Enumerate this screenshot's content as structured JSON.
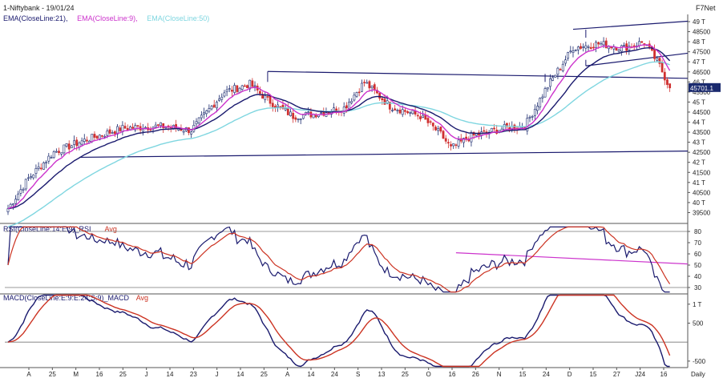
{
  "header": {
    "title": "1-Niftybank - 19/01/24",
    "brand": "F7Net",
    "ema_legend": [
      {
        "label": "EMA(CloseLine:21),",
        "color": "#1a1a6e"
      },
      {
        "label": "EMA(CloseLine:9),",
        "color": "#cc33cc"
      },
      {
        "label": "EMA(CloseLine:50)",
        "color": "#7fd6e0"
      }
    ]
  },
  "price_panel": {
    "ticks": [
      "49 T",
      "48500",
      "48 T",
      "47500",
      "47 T",
      "46500",
      "46 T",
      "45500",
      "45 T",
      "44500",
      "44 T",
      "43500",
      "43 T",
      "42500",
      "42 T",
      "41500",
      "41 T",
      "40500",
      "40 T",
      "39500"
    ],
    "tick_values": [
      49000,
      48500,
      48000,
      47500,
      47000,
      46500,
      46000,
      45500,
      45000,
      44500,
      44000,
      43500,
      43000,
      42500,
      42000,
      41500,
      41000,
      40500,
      40000,
      39500
    ],
    "last_price_label": "45701.1",
    "last_price": 45701.1,
    "colors": {
      "up": "#1a2a6e",
      "down": "#d03030",
      "ema21": "#1a1a6e",
      "ema9": "#cc33cc",
      "ema50": "#7fd6e0",
      "trend": "#1a1a6e"
    }
  },
  "rsi_panel": {
    "legend": [
      {
        "label": "RSI(CloseLine:14:E:9)_RSI",
        "color": "#1a1a6e"
      },
      {
        "label": "Avg",
        "color": "#cc3322"
      }
    ],
    "ticks": [
      "80",
      "70",
      "60",
      "50",
      "40",
      "30"
    ],
    "tick_values": [
      80,
      70,
      60,
      50,
      40,
      30
    ],
    "trendline_color": "#cc33cc"
  },
  "macd_panel": {
    "legend": [
      {
        "label": "MACD(CloseLine:E:9:E:24:S:9)_MACD",
        "color": "#1a1a6e"
      },
      {
        "label": "Avg",
        "color": "#cc3322"
      }
    ],
    "ticks": [
      "1 T",
      "500",
      "-500"
    ],
    "tick_values": [
      1000,
      500,
      -500
    ]
  },
  "x_axis": {
    "labels": [
      "A",
      "25",
      "M",
      "16",
      "25",
      "J",
      "14",
      "23",
      "J",
      "14",
      "25",
      "A",
      "14",
      "24",
      "S",
      "13",
      "25",
      "O",
      "16",
      "26",
      "N",
      "15",
      "24",
      "D",
      "15",
      "27",
      "J24",
      "16"
    ],
    "interval": "Daily"
  },
  "chart_data": [
    {
      "type": "candlestick",
      "title": "1-Niftybank - 19/01/24",
      "interval": "Daily",
      "ylim": [
        39000,
        49200
      ],
      "x_labels": [
        "A",
        "25",
        "M",
        "16",
        "25",
        "J",
        "14",
        "23",
        "J",
        "14",
        "25",
        "A",
        "14",
        "24",
        "S",
        "13",
        "25",
        "O",
        "16",
        "26",
        "N",
        "15",
        "24",
        "D",
        "15",
        "27",
        "J24",
        "16"
      ],
      "close_anchors": [
        {
          "i": 0,
          "v": 39700
        },
        {
          "i": 8,
          "v": 41200
        },
        {
          "i": 18,
          "v": 42500
        },
        {
          "i": 30,
          "v": 43100
        },
        {
          "i": 45,
          "v": 43700
        },
        {
          "i": 60,
          "v": 43800
        },
        {
          "i": 72,
          "v": 43600
        },
        {
          "i": 85,
          "v": 45500
        },
        {
          "i": 95,
          "v": 45900
        },
        {
          "i": 102,
          "v": 45100
        },
        {
          "i": 112,
          "v": 44300
        },
        {
          "i": 120,
          "v": 44400
        },
        {
          "i": 132,
          "v": 44700
        },
        {
          "i": 140,
          "v": 46000
        },
        {
          "i": 150,
          "v": 44800
        },
        {
          "i": 162,
          "v": 44300
        },
        {
          "i": 170,
          "v": 43400
        },
        {
          "i": 174,
          "v": 42700
        },
        {
          "i": 182,
          "v": 43300
        },
        {
          "i": 195,
          "v": 43700
        },
        {
          "i": 203,
          "v": 43800
        },
        {
          "i": 212,
          "v": 45800
        },
        {
          "i": 222,
          "v": 47700
        },
        {
          "i": 232,
          "v": 47900
        },
        {
          "i": 242,
          "v": 47700
        },
        {
          "i": 250,
          "v": 48000
        },
        {
          "i": 256,
          "v": 46800
        },
        {
          "i": 260,
          "v": 45701.1
        }
      ],
      "series": [
        {
          "name": "EMA(CloseLine:21)"
        },
        {
          "name": "EMA(CloseLine:9)"
        },
        {
          "name": "EMA(CloseLine:50)"
        }
      ]
    },
    {
      "type": "line",
      "ylim": [
        25,
        85
      ],
      "series": [
        {
          "name": "RSI(CloseLine:14:E:9)_RSI"
        },
        {
          "name": "Avg"
        }
      ]
    },
    {
      "type": "line",
      "ylim": [
        -650,
        1250
      ],
      "series": [
        {
          "name": "MACD(CloseLine:E:9:E:24:S:9)_MACD"
        },
        {
          "name": "Avg"
        }
      ]
    }
  ]
}
